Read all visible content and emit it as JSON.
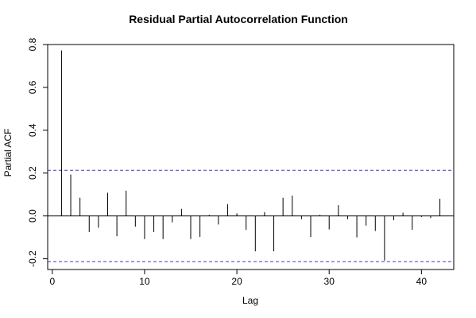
{
  "chart_data": {
    "type": "bar",
    "title": "Residual Partial Autocorrelation Function",
    "xlabel": "Lag",
    "ylabel": "Partial ACF",
    "xlim": [
      -0.5,
      43.5
    ],
    "ylim": [
      -0.25,
      0.8
    ],
    "xticks": [
      0,
      10,
      20,
      30,
      40
    ],
    "yticks": [
      -0.2,
      0.0,
      0.2,
      0.4,
      0.6,
      0.8
    ],
    "ytick_labels": [
      "-0.2",
      "0.0",
      "0.2",
      "0.4",
      "0.6",
      "0.8"
    ],
    "confidence_bound": 0.213,
    "confidence_color": "#3b3bcc",
    "grid": false,
    "lags": [
      1,
      2,
      3,
      4,
      5,
      6,
      7,
      8,
      9,
      10,
      11,
      12,
      13,
      14,
      15,
      16,
      17,
      18,
      19,
      20,
      21,
      22,
      23,
      24,
      25,
      26,
      27,
      28,
      29,
      30,
      31,
      32,
      33,
      34,
      35,
      36,
      37,
      38,
      39,
      40,
      41,
      42
    ],
    "values": [
      0.772,
      0.193,
      0.085,
      -0.075,
      -0.055,
      0.108,
      -0.095,
      0.118,
      -0.05,
      -0.108,
      -0.075,
      -0.108,
      -0.03,
      0.033,
      -0.108,
      -0.098,
      0.005,
      -0.04,
      0.055,
      0.012,
      -0.065,
      -0.165,
      0.018,
      -0.165,
      0.085,
      0.095,
      -0.015,
      -0.098,
      0.005,
      -0.063,
      0.05,
      -0.015,
      -0.1,
      -0.045,
      -0.07,
      -0.208,
      -0.02,
      0.015,
      -0.065,
      -0.005,
      -0.01,
      0.08
    ]
  }
}
